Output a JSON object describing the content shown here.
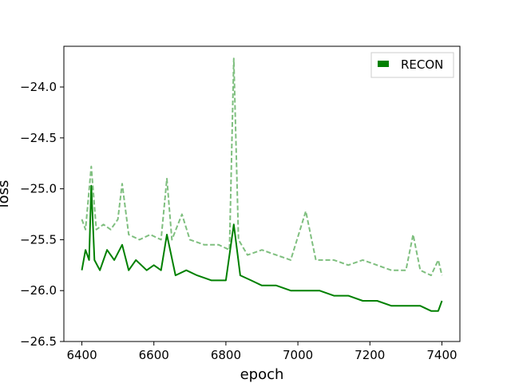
{
  "chart_data": {
    "type": "line",
    "title": "",
    "xlabel": "epoch",
    "ylabel": "loss",
    "xlim": [
      6350,
      7450
    ],
    "ylim": [
      -26.5,
      -23.6
    ],
    "xticks": [
      6400,
      6600,
      6800,
      7000,
      7200,
      7400
    ],
    "xtick_labels": [
      "6400",
      "6600",
      "6800",
      "7000",
      "7200",
      "7400"
    ],
    "yticks": [
      -26.5,
      -26.0,
      -25.5,
      -25.0,
      -24.5,
      -24.0
    ],
    "ytick_labels": [
      "−26.5",
      "−26.0",
      "−25.5",
      "−25.0",
      "−24.5",
      "−24.0"
    ],
    "legend": {
      "placement": "top-right",
      "entries": [
        "RECON"
      ]
    },
    "colors": {
      "recon": "#008000",
      "recon_dashed": "#7fbf7f"
    },
    "series": [
      {
        "name": "RECON",
        "style": "solid",
        "x": [
          6400,
          6410,
          6420,
          6426,
          6435,
          6450,
          6470,
          6490,
          6512,
          6530,
          6550,
          6580,
          6600,
          6620,
          6636,
          6660,
          6690,
          6720,
          6760,
          6800,
          6822,
          6840,
          6870,
          6900,
          6940,
          6980,
          7020,
          7060,
          7100,
          7140,
          7180,
          7220,
          7260,
          7300,
          7340,
          7370,
          7390,
          7400
        ],
        "y": [
          -25.8,
          -25.6,
          -25.7,
          -24.97,
          -25.7,
          -25.8,
          -25.6,
          -25.7,
          -25.55,
          -25.8,
          -25.7,
          -25.8,
          -25.75,
          -25.8,
          -25.45,
          -25.85,
          -25.8,
          -25.85,
          -25.9,
          -25.9,
          -25.35,
          -25.85,
          -25.9,
          -25.95,
          -25.95,
          -26.0,
          -26.0,
          -26.0,
          -26.05,
          -26.05,
          -26.1,
          -26.1,
          -26.15,
          -26.15,
          -26.15,
          -26.2,
          -26.2,
          -26.1
        ]
      },
      {
        "name": "",
        "style": "dashed",
        "x": [
          6400,
          6410,
          6426,
          6440,
          6460,
          6480,
          6500,
          6512,
          6530,
          6560,
          6590,
          6620,
          6636,
          6650,
          6678,
          6700,
          6740,
          6780,
          6810,
          6822,
          6835,
          6860,
          6900,
          6940,
          6980,
          7022,
          7050,
          7100,
          7140,
          7180,
          7220,
          7260,
          7300,
          7320,
          7340,
          7370,
          7390,
          7400
        ],
        "y": [
          -25.3,
          -25.4,
          -24.78,
          -25.4,
          -25.35,
          -25.4,
          -25.3,
          -24.95,
          -25.45,
          -25.5,
          -25.45,
          -25.5,
          -24.9,
          -25.5,
          -25.25,
          -25.5,
          -25.55,
          -25.55,
          -25.6,
          -23.72,
          -25.5,
          -25.65,
          -25.6,
          -25.65,
          -25.7,
          -25.22,
          -25.7,
          -25.7,
          -25.75,
          -25.7,
          -25.75,
          -25.8,
          -25.8,
          -25.45,
          -25.8,
          -25.85,
          -25.7,
          -25.85
        ]
      }
    ]
  }
}
